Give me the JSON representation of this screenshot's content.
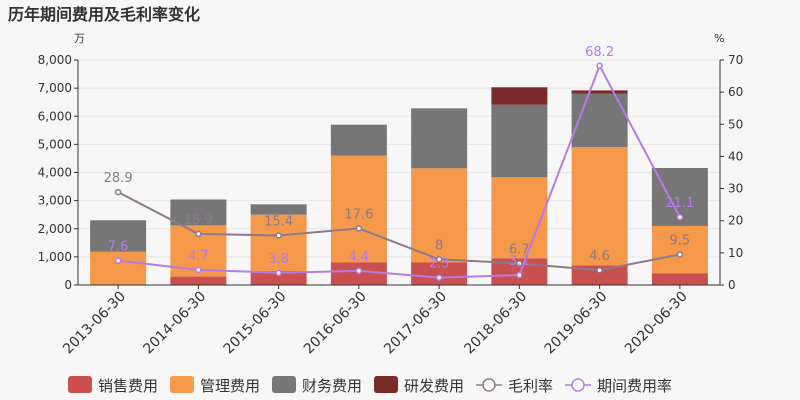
{
  "title": "历年期间费用及毛利率变化",
  "chart_data": {
    "type": "bar",
    "title": "历年期间费用及毛利率变化",
    "categories": [
      "2013-06-30",
      "2014-06-30",
      "2015-06-30",
      "2016-06-30",
      "2017-06-30",
      "2018-06-30",
      "2019-06-30",
      "2020-06-30"
    ],
    "y_left": {
      "unit": "万",
      "ylim": [
        0,
        8000
      ],
      "ticks": [
        "0",
        "1,000",
        "2,000",
        "3,000",
        "4,000",
        "5,000",
        "6,000",
        "7,000",
        "8,000"
      ]
    },
    "y_right": {
      "unit": "%",
      "ylim": [
        0,
        70
      ],
      "ticks": [
        "0",
        "10",
        "20",
        "30",
        "40",
        "50",
        "60",
        "70"
      ]
    },
    "stacked_series": [
      {
        "name": "销售费用",
        "color": "#c9504f",
        "values": [
          0,
          300,
          500,
          800,
          800,
          950,
          700,
          420
        ]
      },
      {
        "name": "管理费用",
        "color": "#f5984a",
        "values": [
          1180,
          1820,
          2000,
          3800,
          3350,
          2880,
          4200,
          1680
        ]
      },
      {
        "name": "财务费用",
        "color": "#767676",
        "values": [
          1120,
          920,
          370,
          1100,
          2130,
          2580,
          1900,
          2060
        ]
      },
      {
        "name": "研发费用",
        "color": "#7b2a2a",
        "values": [
          0,
          0,
          0,
          0,
          0,
          620,
          120,
          0
        ]
      }
    ],
    "line_series": [
      {
        "name": "毛利率",
        "color": "#8a7a8c",
        "values": [
          28.9,
          15.9,
          15.4,
          17.6,
          8,
          6.7,
          4.6,
          9.5
        ],
        "labels": [
          "28.9",
          "15.9",
          "15.4",
          "17.6",
          "8",
          "6.7",
          "4.6",
          "9.5"
        ]
      },
      {
        "name": "期间费用率",
        "color": "#b57be6",
        "values": [
          7.6,
          4.7,
          3.8,
          4.4,
          2.3,
          3.1,
          68.2,
          21.1
        ],
        "labels": [
          "7.6",
          "4.7",
          "3.8",
          "4.4",
          "2.3",
          "3.1",
          "68.2",
          "21.1"
        ]
      }
    ],
    "grid": true,
    "legend_position": "bottom"
  }
}
